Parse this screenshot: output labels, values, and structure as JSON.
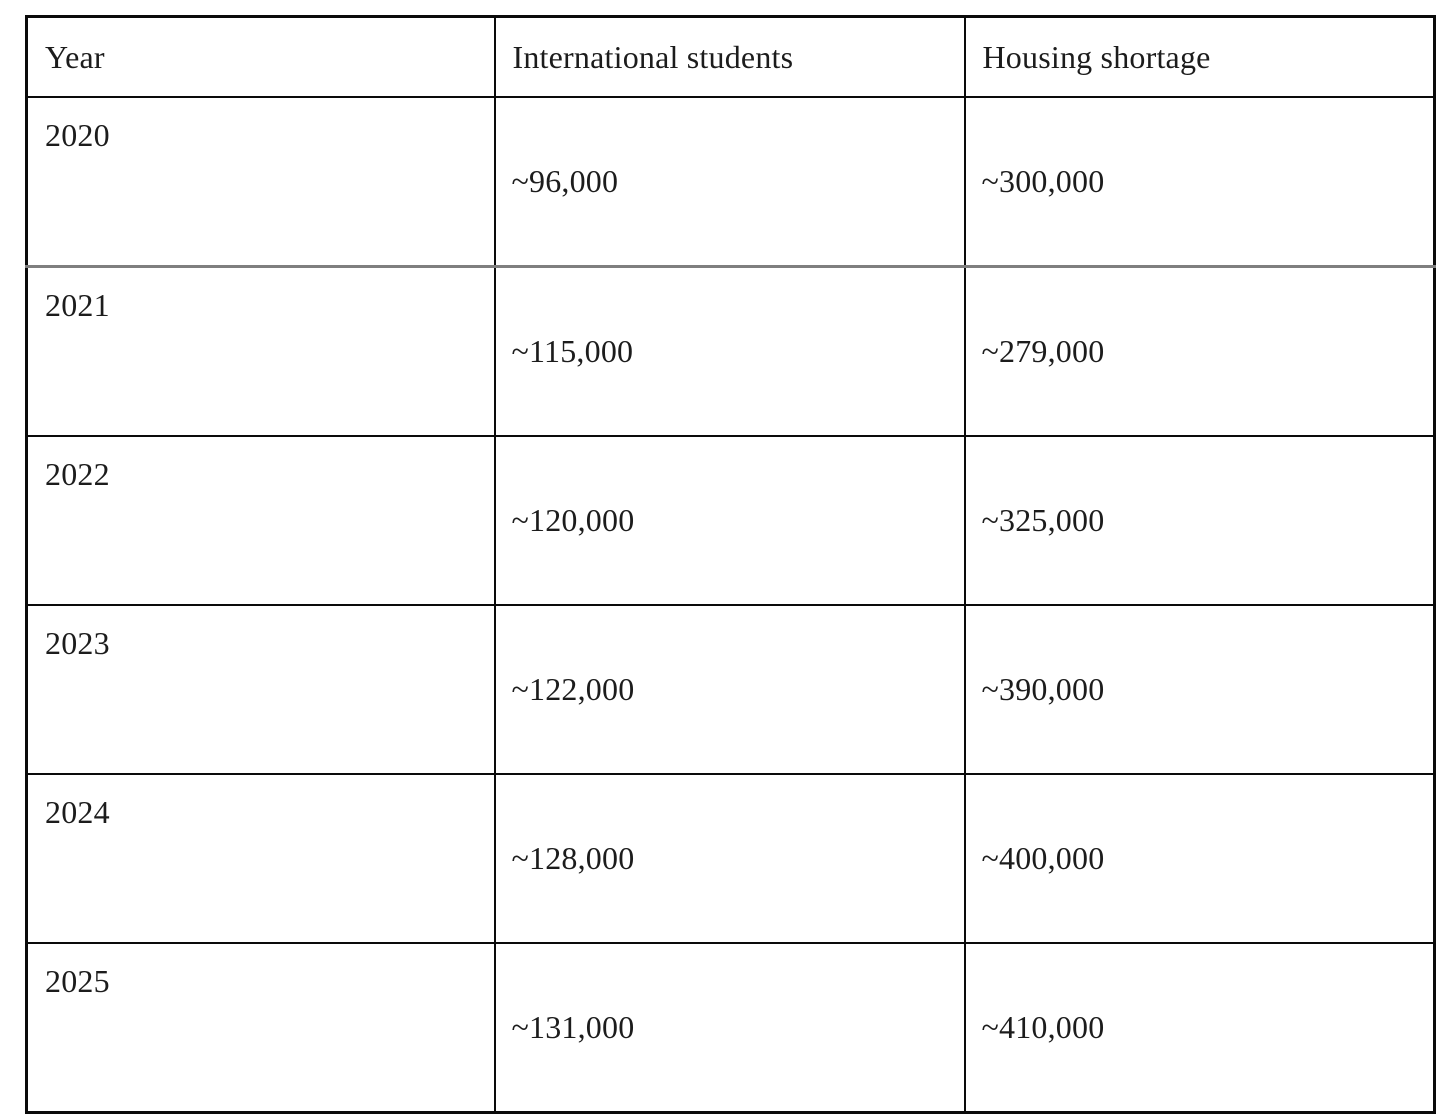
{
  "table": {
    "headers": {
      "year": "Year",
      "students": "International students",
      "shortage": "Housing shortage"
    },
    "rows": [
      {
        "year": "2020",
        "students": "~96,000",
        "shortage": "~300,000"
      },
      {
        "year": "2021",
        "students": "~115,000",
        "shortage": "~279,000"
      },
      {
        "year": "2022",
        "students": "~120,000",
        "shortage": "~325,000"
      },
      {
        "year": "2023",
        "students": "~122,000",
        "shortage": "~390,000"
      },
      {
        "year": "2024",
        "students": "~128,000",
        "shortage": "~400,000"
      },
      {
        "year": "2025",
        "students": "~131,000",
        "shortage": "~410,000"
      }
    ]
  },
  "chart_data": {
    "type": "table",
    "columns": [
      "Year",
      "International students",
      "Housing shortage"
    ],
    "rows": [
      [
        "2020",
        "~96,000",
        "~300,000"
      ],
      [
        "2021",
        "~115,000",
        "~279,000"
      ],
      [
        "2022",
        "~120,000",
        "~325,000"
      ],
      [
        "2023",
        "~122,000",
        "~390,000"
      ],
      [
        "2024",
        "~128,000",
        "~400,000"
      ],
      [
        "2025",
        "~131,000",
        "~410,000"
      ]
    ]
  },
  "colors": {
    "border": "#0a0a0a",
    "divider_gray": "#7f7f7f",
    "text": "#1c1c1c",
    "background": "#ffffff"
  }
}
